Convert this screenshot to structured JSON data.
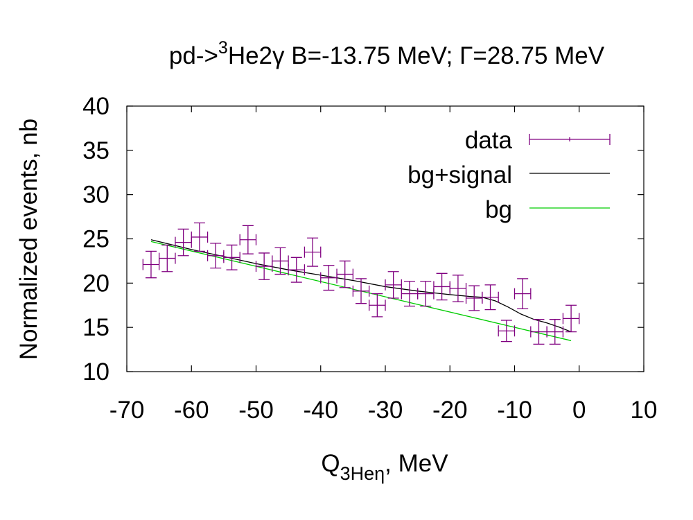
{
  "chart_data": {
    "type": "scatter",
    "title": {
      "prefix": "pd->",
      "sup": "3",
      "suffix": "He2γ B=-13.75 MeV; Γ=28.75 MeV"
    },
    "xlabel": {
      "main": "Q",
      "sub": "3Heη",
      "unit": ", MeV"
    },
    "ylabel": "Normalized events, nb",
    "xlim": [
      -70,
      10
    ],
    "ylim": [
      10,
      40
    ],
    "x_ticks": [
      "-70",
      "-60",
      "-50",
      "-40",
      "-30",
      "-20",
      "-10",
      "0",
      "10"
    ],
    "y_ticks": [
      "10",
      "15",
      "20",
      "25",
      "30",
      "35",
      "40"
    ],
    "legend": {
      "position": "top-right",
      "entries": [
        {
          "label": "data",
          "color": "#800080",
          "style": "errorbar"
        },
        {
          "label": "bg+signal",
          "color": "#000000",
          "style": "line"
        },
        {
          "label": "bg",
          "color": "#00cc00",
          "style": "line"
        }
      ]
    },
    "x_error": 1.25,
    "data": [
      {
        "x": -66.25,
        "y": 22.1,
        "err": 1.5
      },
      {
        "x": -63.75,
        "y": 22.8,
        "err": 1.5
      },
      {
        "x": -61.25,
        "y": 24.6,
        "err": 1.5
      },
      {
        "x": -58.75,
        "y": 25.2,
        "err": 1.6
      },
      {
        "x": -56.25,
        "y": 23.1,
        "err": 1.4
      },
      {
        "x": -53.75,
        "y": 22.9,
        "err": 1.4
      },
      {
        "x": -51.25,
        "y": 24.9,
        "err": 1.6
      },
      {
        "x": -48.75,
        "y": 21.9,
        "err": 1.5
      },
      {
        "x": -46.25,
        "y": 22.5,
        "err": 1.5
      },
      {
        "x": -43.75,
        "y": 21.5,
        "err": 1.4
      },
      {
        "x": -41.25,
        "y": 23.5,
        "err": 1.6
      },
      {
        "x": -38.75,
        "y": 20.6,
        "err": 1.4
      },
      {
        "x": -36.25,
        "y": 21.0,
        "err": 1.5
      },
      {
        "x": -33.75,
        "y": 19.1,
        "err": 1.4
      },
      {
        "x": -31.25,
        "y": 17.5,
        "err": 1.3
      },
      {
        "x": -28.75,
        "y": 19.8,
        "err": 1.5
      },
      {
        "x": -26.25,
        "y": 18.8,
        "err": 1.4
      },
      {
        "x": -23.75,
        "y": 18.8,
        "err": 1.4
      },
      {
        "x": -21.25,
        "y": 19.6,
        "err": 1.5
      },
      {
        "x": -18.75,
        "y": 19.4,
        "err": 1.5
      },
      {
        "x": -16.25,
        "y": 18.3,
        "err": 1.4
      },
      {
        "x": -13.75,
        "y": 18.4,
        "err": 1.4
      },
      {
        "x": -11.25,
        "y": 14.6,
        "err": 1.2
      },
      {
        "x": -8.75,
        "y": 18.8,
        "err": 1.7
      },
      {
        "x": -6.25,
        "y": 14.5,
        "err": 1.4
      },
      {
        "x": -3.75,
        "y": 14.5,
        "err": 1.4
      },
      {
        "x": -1.25,
        "y": 16.0,
        "err": 1.5
      }
    ],
    "series": [
      {
        "name": "bg+signal",
        "color": "#000000",
        "x": [
          -66.25,
          -60,
          -55,
          -50,
          -45,
          -40,
          -35,
          -30,
          -25,
          -20,
          -17,
          -15,
          -13,
          -11,
          -9,
          -7,
          -5,
          -3,
          -1.25
        ],
        "y": [
          24.9,
          23.8,
          23.0,
          22.2,
          21.5,
          20.9,
          20.3,
          19.6,
          19.1,
          18.7,
          18.5,
          18.4,
          18.0,
          17.3,
          16.5,
          15.9,
          15.5,
          15.0,
          14.5
        ]
      },
      {
        "name": "bg",
        "color": "#00cc00",
        "x": [
          -66.25,
          -1.25
        ],
        "y": [
          24.7,
          13.5
        ]
      }
    ]
  }
}
